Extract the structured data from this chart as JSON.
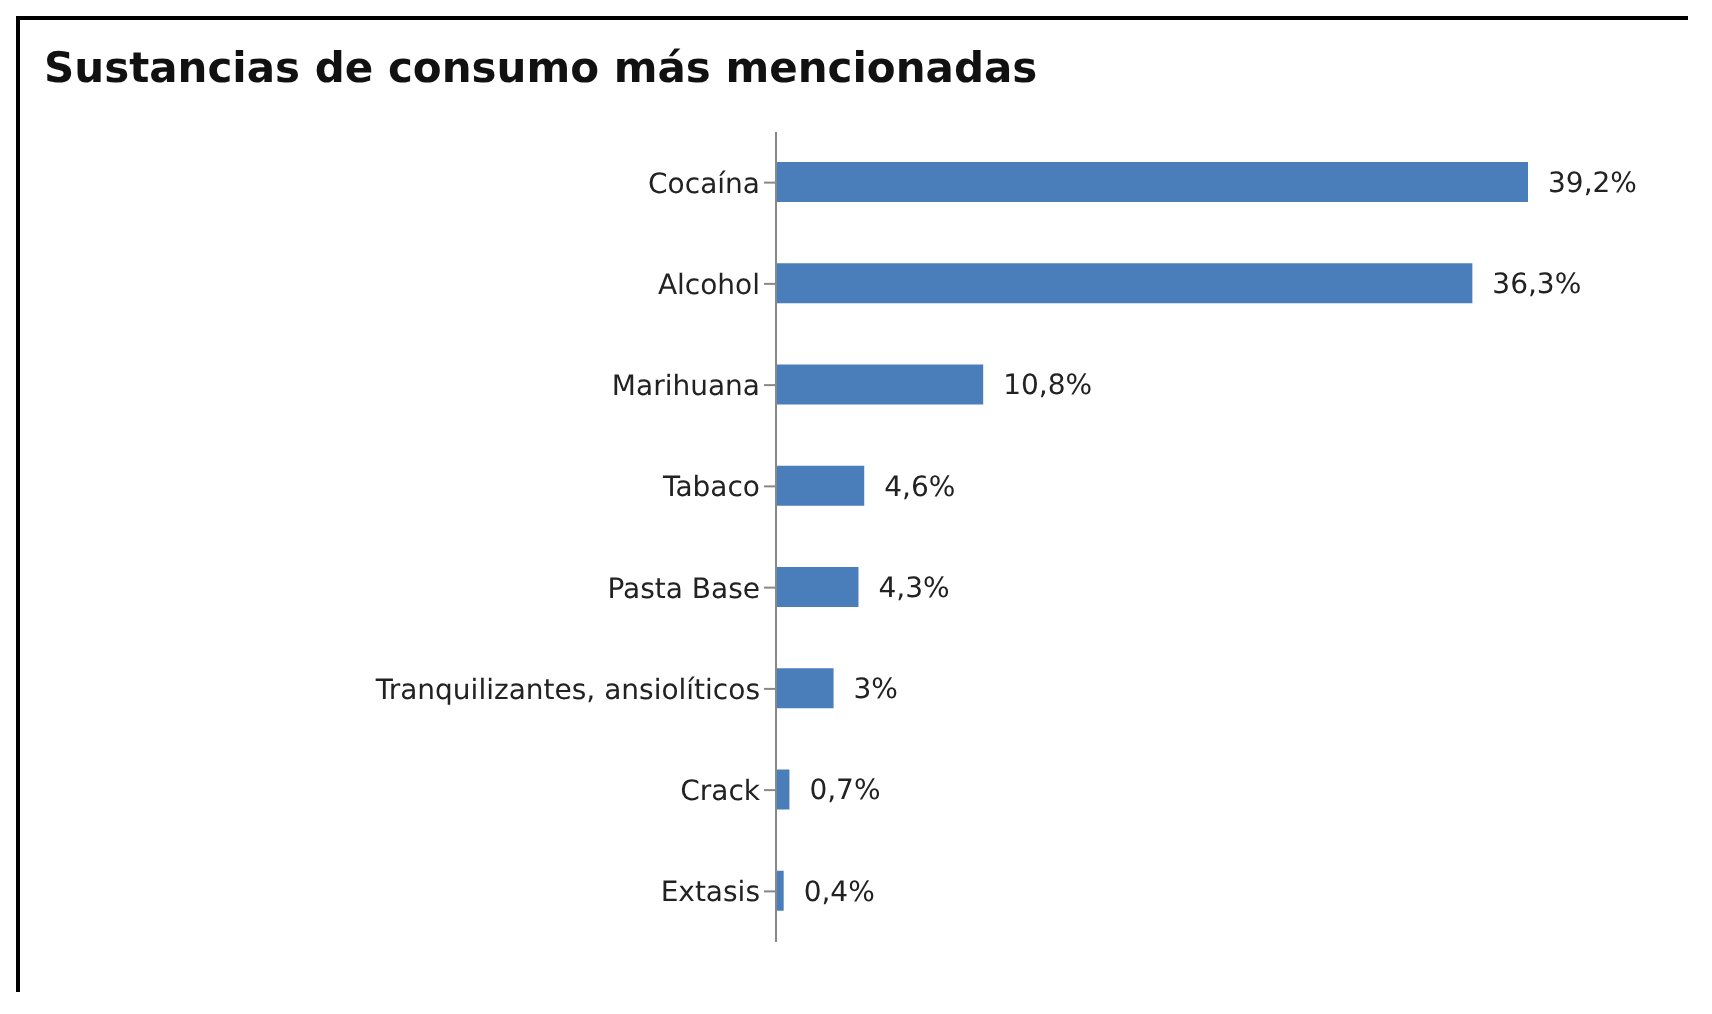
{
  "chart_data": {
    "type": "bar",
    "orientation": "horizontal",
    "title": "Sustancias de consumo más mencionadas",
    "categories": [
      "Cocaína",
      "Alcohol",
      "Marihuana",
      "Tabaco",
      "Pasta Base",
      "Tranquilizantes, ansiolíticos",
      "Crack",
      "Extasis"
    ],
    "values": [
      39.2,
      36.3,
      10.8,
      4.6,
      4.3,
      3,
      0.7,
      0.4
    ],
    "value_labels": [
      "39,2%",
      "36,3%",
      "10,8%",
      "4,6%",
      "4,3%",
      "3%",
      "0,7%",
      "0,4%"
    ],
    "color": "#4a7ebb",
    "grid": false,
    "legend": false
  }
}
